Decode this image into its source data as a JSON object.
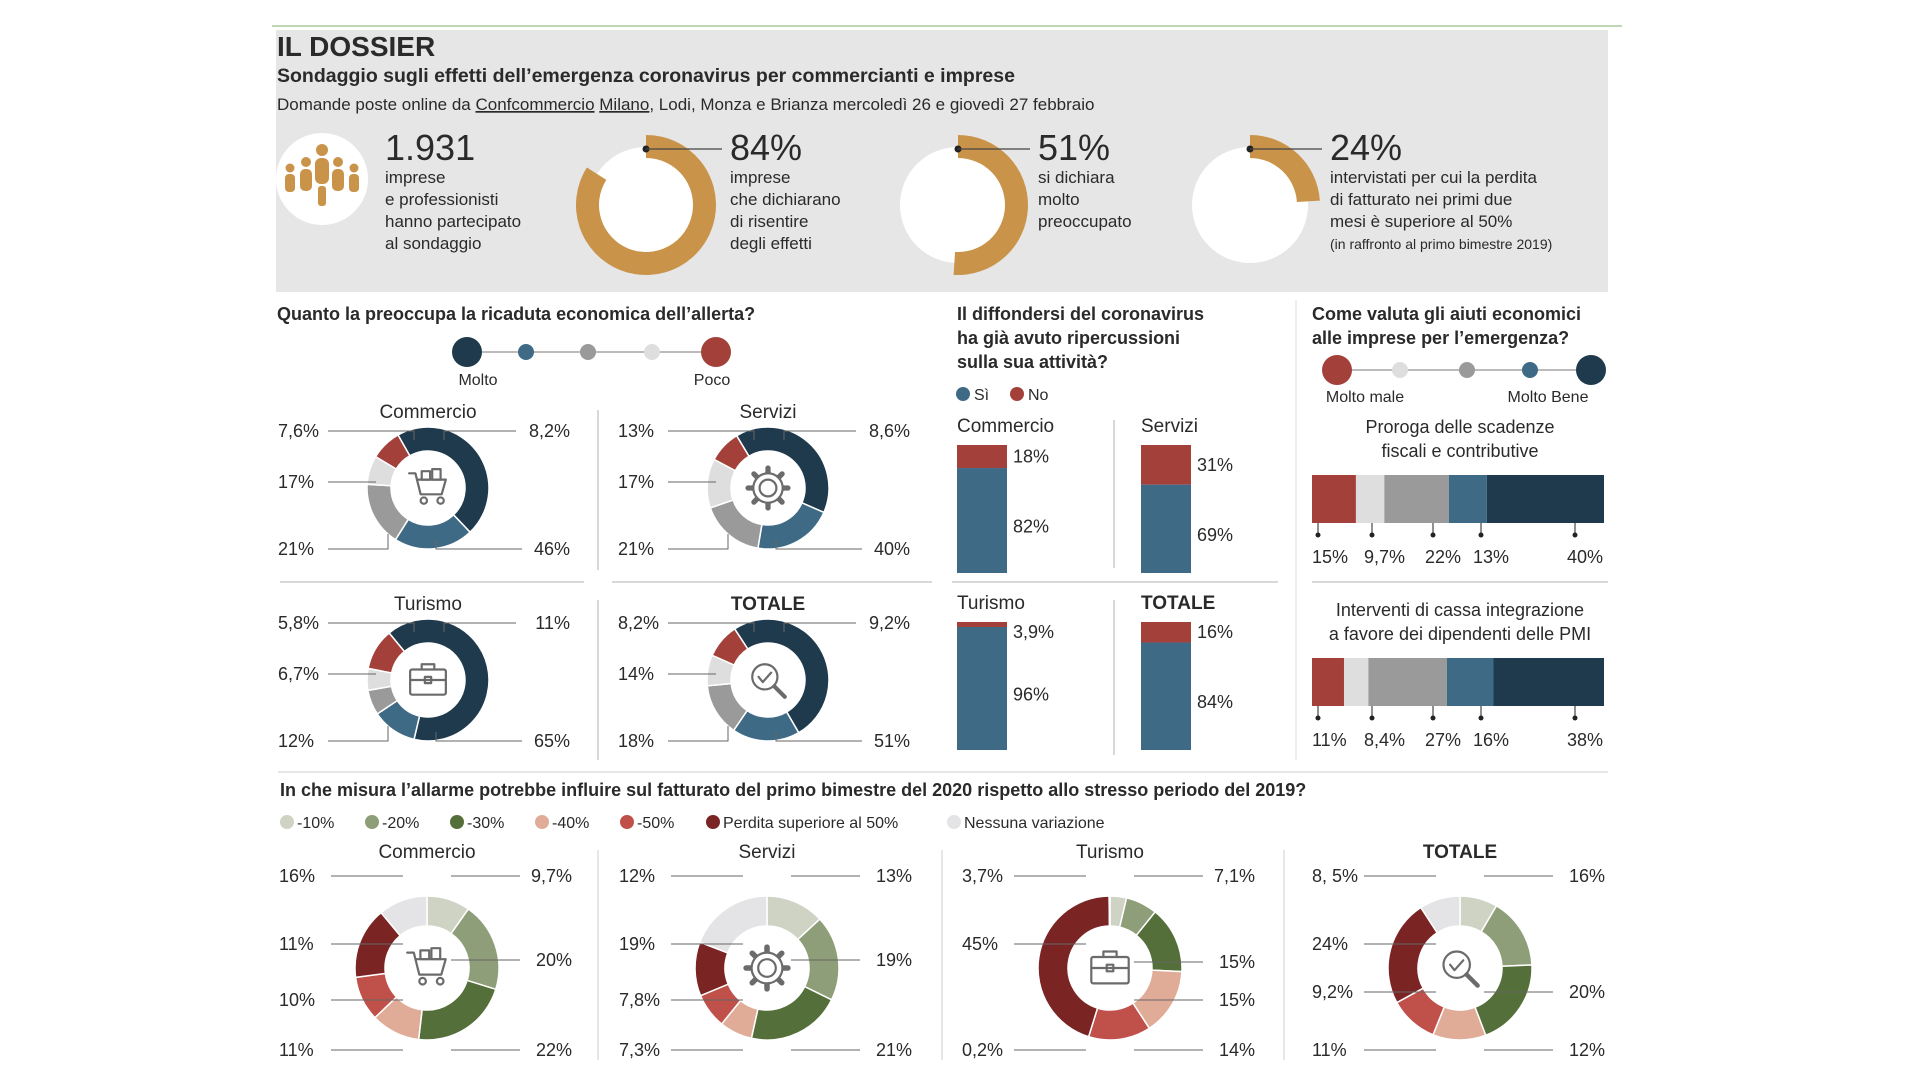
{
  "header": {
    "dossier": "IL DOSSIER",
    "headline": "Sondaggio sugli effetti dell’emergenza coronavirus per commercianti e imprese",
    "sub_prefix": "Domande poste online da ",
    "sub_link1": "Confcommercio",
    "sub_link2": "Milano",
    "sub_suffix": ", Lodi, Monza e Brianza mercoledì 26 e giovedì 27 febbraio"
  },
  "stats": [
    {
      "value": "1.931",
      "lines": [
        "imprese",
        "e professionisti",
        "hanno partecipato",
        "al sondaggio"
      ]
    },
    {
      "value": "84%",
      "fraction": 0.84,
      "lines": [
        "imprese",
        "che dichiarano",
        "di risentire",
        "degli effetti"
      ]
    },
    {
      "value": "51%",
      "fraction": 0.51,
      "lines": [
        "si dichiara",
        "molto",
        "preoccupato"
      ]
    },
    {
      "value": "24%",
      "fraction": 0.24,
      "lines": [
        "intervistati per cui la perdita",
        "di fatturato nei primi due",
        "mesi è superiore al 50%"
      ],
      "note": "(in raffronto al primo bimestre 2019)"
    }
  ],
  "colors": {
    "navy": "#1f3a4d",
    "steel": "#3e6a86",
    "grey": "#9a9a9a",
    "light": "#dedede",
    "red": "#a3403a",
    "orange": "#c9934a",
    "panel": "#e8e8e8",
    "g10": "#cfd3c4",
    "g20": "#8e9e78",
    "g30": "#556f3a",
    "s40": "#e0ac98",
    "s50": "#c0504a",
    "s50p": "#7a2424",
    "none": "#e4e4e6"
  },
  "chart_data": [
    {
      "type": "pie",
      "title": "Quanto la preoccupa la ricaduta economica dell’allerta?",
      "legend": {
        "left": "Molto",
        "right": "Poco"
      },
      "subcharts": [
        {
          "name": "Commercio",
          "icon": "cart-icon",
          "values": [
            46,
            21,
            17,
            7.6,
            8.2
          ],
          "labels": [
            "46%",
            "21%",
            "17%",
            "7,6%",
            "8,2%"
          ]
        },
        {
          "name": "Servizi",
          "icon": "gear-icon",
          "values": [
            40,
            21,
            17,
            13,
            8.6
          ],
          "labels": [
            "40%",
            "21%",
            "17%",
            "13%",
            "8,6%"
          ]
        },
        {
          "name": "Turismo",
          "icon": "briefcase-icon",
          "values": [
            65,
            12,
            6.7,
            5.8,
            11
          ],
          "labels": [
            "65%",
            "12%",
            "6,7%",
            "5,8%",
            "11%"
          ]
        },
        {
          "name": "TOTALE",
          "icon": "magnifier-check-icon",
          "values": [
            51,
            18,
            14,
            8.2,
            9.2
          ],
          "labels": [
            "51%",
            "18%",
            "14%",
            "8,2%",
            "9,2%"
          ]
        }
      ]
    },
    {
      "type": "bar",
      "title": [
        "Il diffondersi del coronavirus",
        "ha già avuto ripercussioni",
        "sulla sua attività?"
      ],
      "legend": [
        "Sì",
        "No"
      ],
      "subcharts": [
        {
          "name": "Commercio",
          "si": 82,
          "no": 18,
          "si_label": "82%",
          "no_label": "18%"
        },
        {
          "name": "Servizi",
          "si": 69,
          "no": 31,
          "si_label": "69%",
          "no_label": "31%"
        },
        {
          "name": "Turismo",
          "si": 96,
          "no": 3.9,
          "si_label": "96%",
          "no_label": "3,9%"
        },
        {
          "name": "TOTALE",
          "si": 84,
          "no": 16,
          "si_label": "84%",
          "no_label": "16%"
        }
      ]
    },
    {
      "type": "bar",
      "title": [
        "Come valuta gli aiuti economici",
        "alle imprese per l’emergenza?"
      ],
      "legend": {
        "left": "Molto male",
        "right": "Molto Bene"
      },
      "subcharts": [
        {
          "name": [
            "Proroga delle scadenze",
            "fiscali e contributive"
          ],
          "values": [
            15,
            9.7,
            22,
            13,
            40
          ],
          "labels": [
            "15%",
            "9,7%",
            "22%",
            "13%",
            "40%"
          ]
        },
        {
          "name": [
            "Interventi di cassa integrazione",
            "a favore dei dipendenti delle PMI"
          ],
          "values": [
            11,
            8.4,
            27,
            16,
            38
          ],
          "labels": [
            "11%",
            "8,4%",
            "27%",
            "16%",
            "38%"
          ]
        }
      ]
    },
    {
      "type": "pie",
      "title": "In che misura l’allarme potrebbe influire sul fatturato del primo bimestre del 2020 rispetto allo stresso periodo del 2019?",
      "legend": [
        "-10%",
        "-20%",
        "-30%",
        "-40%",
        "-50%",
        "Perdita superiore al 50%",
        "Nessuna variazione"
      ],
      "subcharts": [
        {
          "name": "Commercio",
          "icon": "cart-icon",
          "values": [
            9.7,
            20,
            22,
            11,
            10,
            16,
            11
          ],
          "labels": [
            "9,7%",
            "20%",
            "22%",
            "11%",
            "10%",
            "16%",
            "11%"
          ]
        },
        {
          "name": "Servizi",
          "icon": "gear-icon",
          "values": [
            13,
            19,
            21,
            7.3,
            7.8,
            12,
            19
          ],
          "labels": [
            "13%",
            "19%",
            "21%",
            "7,3%",
            "7,8%",
            "12%",
            "19%"
          ]
        },
        {
          "name": "Turismo",
          "icon": "briefcase-icon",
          "values": [
            3.7,
            7.1,
            15,
            15,
            14,
            45,
            0.2
          ],
          "labels": [
            "3,7%",
            "7,1%",
            "15%",
            "15%",
            "14%",
            "45%",
            "0,2%"
          ]
        },
        {
          "name": "TOTALE",
          "icon": "magnifier-check-icon",
          "values": [
            8.5,
            16,
            20,
            12,
            11,
            24,
            9.2
          ],
          "labels": [
            "8, 5%",
            "16%",
            "20%",
            "12%",
            "11%",
            "24%",
            "9,2%"
          ]
        }
      ]
    }
  ]
}
